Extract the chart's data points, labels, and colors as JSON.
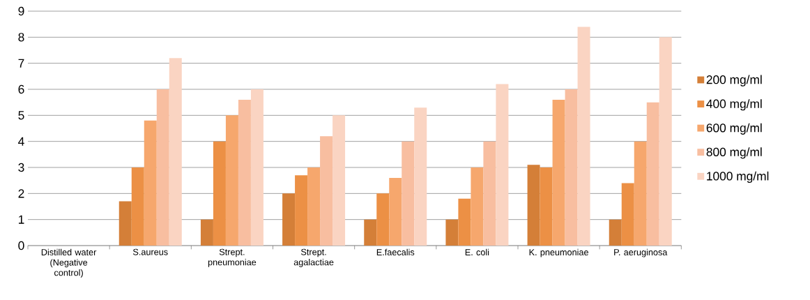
{
  "chart_data": {
    "type": "bar",
    "categories": [
      "Distilled water (Negative control)",
      "S.aureus",
      "Strept. pneumoniae",
      "Strept. agalactiae",
      "E.faecalis",
      "E. coli",
      "K. pneumoniae",
      "P. aeruginosa"
    ],
    "series": [
      {
        "name": "200 mg/ml",
        "color": "#d47f38",
        "values": [
          0,
          1.7,
          1,
          2,
          1,
          1,
          3.1,
          1
        ]
      },
      {
        "name": "400 mg/ml",
        "color": "#ec9045",
        "values": [
          0,
          3,
          4,
          2.7,
          2,
          1.8,
          3,
          2.4
        ]
      },
      {
        "name": "600 mg/ml",
        "color": "#f6a76d",
        "values": [
          0,
          4.8,
          5,
          3,
          2.6,
          3,
          5.6,
          4
        ]
      },
      {
        "name": "800 mg/ml",
        "color": "#f8bea0",
        "values": [
          0,
          6,
          5.6,
          4.2,
          4,
          4,
          6,
          5.5
        ]
      },
      {
        "name": "1000 mg/ml",
        "color": "#fad4c2",
        "values": [
          0,
          7.2,
          6,
          5,
          5.3,
          6.2,
          8.4,
          8
        ]
      }
    ],
    "ylim": [
      0,
      9
    ],
    "yticks": [
      0,
      1,
      2,
      3,
      4,
      5,
      6,
      7,
      8,
      9
    ],
    "grid": "y",
    "legend": "right"
  }
}
